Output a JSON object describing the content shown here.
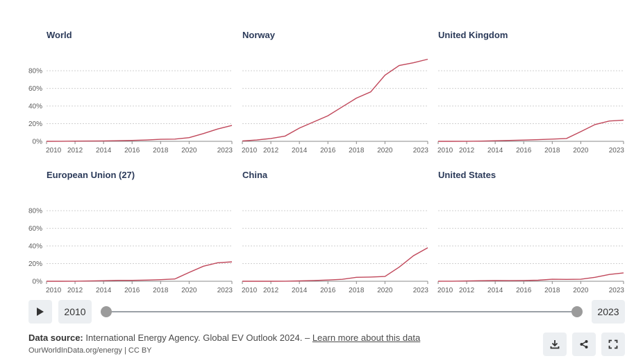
{
  "chart_data": [
    {
      "type": "line",
      "title": "World",
      "x": [
        2010,
        2011,
        2012,
        2013,
        2014,
        2015,
        2016,
        2017,
        2018,
        2019,
        2020,
        2021,
        2022,
        2023
      ],
      "values": [
        0.0,
        0.1,
        0.2,
        0.3,
        0.5,
        0.7,
        1.0,
        1.5,
        2.3,
        2.5,
        4.2,
        8.8,
        14,
        18
      ],
      "xticks": [
        "2010",
        "2012",
        "2014",
        "2016",
        "2018",
        "2020",
        "2023"
      ],
      "yticks": [
        "0%",
        "20%",
        "40%",
        "60%",
        "80%"
      ],
      "ylim": [
        0,
        95
      ]
    },
    {
      "type": "line",
      "title": "Norway",
      "x": [
        2010,
        2011,
        2012,
        2013,
        2014,
        2015,
        2016,
        2017,
        2018,
        2019,
        2020,
        2021,
        2022,
        2023
      ],
      "values": [
        0.5,
        1.5,
        3.2,
        6,
        15,
        22,
        29,
        39,
        49,
        56,
        75,
        86,
        89,
        93
      ],
      "xticks": [
        "2010",
        "2012",
        "2014",
        "2016",
        "2018",
        "2020",
        "2023"
      ],
      "yticks": [
        "0%",
        "20%",
        "40%",
        "60%",
        "80%"
      ],
      "ylim": [
        0,
        95
      ]
    },
    {
      "type": "line",
      "title": "United Kingdom",
      "x": [
        2010,
        2011,
        2012,
        2013,
        2014,
        2015,
        2016,
        2017,
        2018,
        2019,
        2020,
        2021,
        2022,
        2023
      ],
      "values": [
        0.0,
        0.0,
        0.1,
        0.2,
        0.6,
        1.0,
        1.4,
        1.9,
        2.5,
        3.2,
        11,
        19,
        23,
        24
      ],
      "xticks": [
        "2010",
        "2012",
        "2014",
        "2016",
        "2018",
        "2020",
        "2023"
      ],
      "yticks": [
        "0%",
        "20%",
        "40%",
        "60%",
        "80%"
      ],
      "ylim": [
        0,
        95
      ]
    },
    {
      "type": "line",
      "title": "European Union (27)",
      "x": [
        2010,
        2011,
        2012,
        2013,
        2014,
        2015,
        2016,
        2017,
        2018,
        2019,
        2020,
        2021,
        2022,
        2023
      ],
      "values": [
        0.0,
        0.0,
        0.1,
        0.3,
        0.6,
        1.0,
        1.0,
        1.3,
        1.8,
        2.6,
        10,
        17,
        21,
        22
      ],
      "xticks": [
        "2010",
        "2012",
        "2014",
        "2016",
        "2018",
        "2020",
        "2023"
      ],
      "yticks": [
        "0%",
        "20%",
        "40%",
        "60%",
        "80%"
      ],
      "ylim": [
        0,
        95
      ]
    },
    {
      "type": "line",
      "title": "China",
      "x": [
        2010,
        2011,
        2012,
        2013,
        2014,
        2015,
        2016,
        2017,
        2018,
        2019,
        2020,
        2021,
        2022,
        2023
      ],
      "values": [
        0.0,
        0.0,
        0.0,
        0.1,
        0.4,
        0.9,
        1.4,
        2.2,
        4.5,
        4.8,
        5.4,
        16,
        29,
        38
      ],
      "xticks": [
        "2010",
        "2012",
        "2014",
        "2016",
        "2018",
        "2020",
        "2023"
      ],
      "yticks": [
        "0%",
        "20%",
        "40%",
        "60%",
        "80%"
      ],
      "ylim": [
        0,
        95
      ]
    },
    {
      "type": "line",
      "title": "United States",
      "x": [
        2010,
        2011,
        2012,
        2013,
        2014,
        2015,
        2016,
        2017,
        2018,
        2019,
        2020,
        2021,
        2022,
        2023
      ],
      "values": [
        0.0,
        0.1,
        0.3,
        0.6,
        0.8,
        0.7,
        0.9,
        1.2,
        2.3,
        2.1,
        2.3,
        4.5,
        7.7,
        9.5
      ],
      "xticks": [
        "2010",
        "2012",
        "2014",
        "2016",
        "2018",
        "2020",
        "2023"
      ],
      "yticks": [
        "0%",
        "20%",
        "40%",
        "60%",
        "80%"
      ],
      "ylim": [
        0,
        95
      ]
    }
  ],
  "timeline": {
    "start_year": "2010",
    "end_year": "2023"
  },
  "footer": {
    "source_label": "Data source:",
    "source_text": "International Energy Agency. Global EV Outlook 2024. –",
    "source_link": "Learn more about this data",
    "credit": "OurWorldInData.org/energy | CC BY"
  },
  "actions": {
    "download": "download-icon",
    "share": "share-icon",
    "fullscreen": "fullscreen-icon"
  },
  "colors": {
    "series": "#c0475a",
    "title": "#2b3a59"
  }
}
